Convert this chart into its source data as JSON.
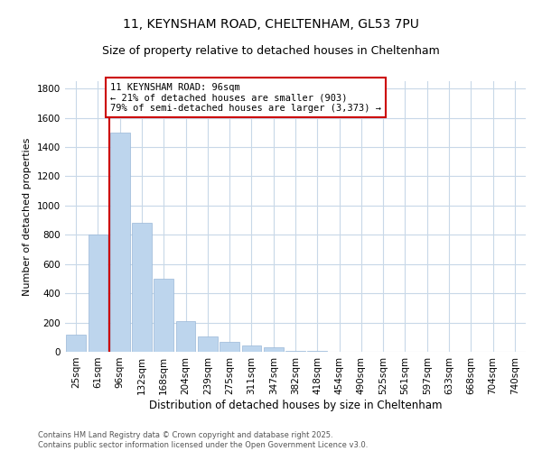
{
  "title_line1": "11, KEYNSHAM ROAD, CHELTENHAM, GL53 7PU",
  "title_line2": "Size of property relative to detached houses in Cheltenham",
  "xlabel": "Distribution of detached houses by size in Cheltenham",
  "ylabel": "Number of detached properties",
  "bar_labels": [
    "25sqm",
    "61sqm",
    "96sqm",
    "132sqm",
    "168sqm",
    "204sqm",
    "239sqm",
    "275sqm",
    "311sqm",
    "347sqm",
    "382sqm",
    "418sqm",
    "454sqm",
    "490sqm",
    "525sqm",
    "561sqm",
    "597sqm",
    "633sqm",
    "668sqm",
    "704sqm",
    "740sqm"
  ],
  "bar_values": [
    120,
    800,
    1500,
    880,
    500,
    210,
    105,
    65,
    45,
    28,
    5,
    5,
    0,
    0,
    0,
    0,
    0,
    0,
    0,
    0,
    0
  ],
  "bar_color": "#bdd5ed",
  "bar_edge_color": "#9ab8d8",
  "vline_x_index": 2,
  "vline_color": "#cc0000",
  "annotation_title": "11 KEYNSHAM ROAD: 96sqm",
  "annotation_line1": "← 21% of detached houses are smaller (903)",
  "annotation_line2": "79% of semi-detached houses are larger (3,373) →",
  "annotation_box_color": "#ffffff",
  "annotation_box_edgecolor": "#cc0000",
  "ylim": [
    0,
    1850
  ],
  "yticks": [
    0,
    200,
    400,
    600,
    800,
    1000,
    1200,
    1400,
    1600,
    1800
  ],
  "footer_line1": "Contains HM Land Registry data © Crown copyright and database right 2025.",
  "footer_line2": "Contains public sector information licensed under the Open Government Licence v3.0.",
  "background_color": "#ffffff",
  "grid_color": "#c8d8e8",
  "title1_fontsize": 10,
  "title2_fontsize": 9,
  "xlabel_fontsize": 8.5,
  "ylabel_fontsize": 8,
  "tick_fontsize": 7.5,
  "footer_fontsize": 6
}
